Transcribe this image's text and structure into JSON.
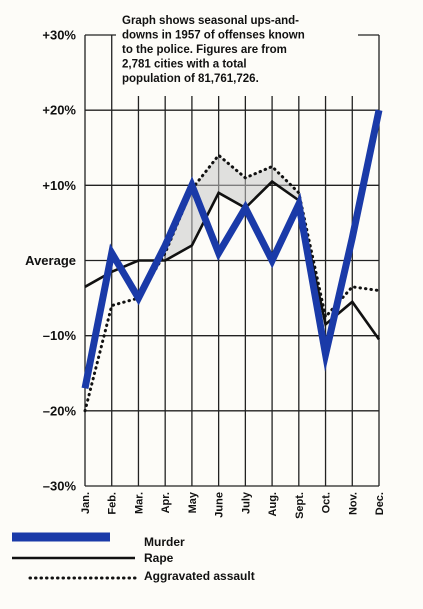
{
  "chart_data": {
    "type": "line",
    "categories": [
      "Jan.",
      "Feb.",
      "Mar.",
      "Apr.",
      "May",
      "June",
      "July",
      "Aug.",
      "Sept.",
      "Oct.",
      "Nov.",
      "Dec."
    ],
    "yticks": [
      {
        "value": 30,
        "label": "+30%"
      },
      {
        "value": 20,
        "label": "+20%"
      },
      {
        "value": 10,
        "label": "+10%"
      },
      {
        "value": 0,
        "label": "Average"
      },
      {
        "value": -10,
        "label": "–10%"
      },
      {
        "value": -20,
        "label": "–20%"
      },
      {
        "value": -30,
        "label": "–30%"
      }
    ],
    "ylim": [
      -30,
      30
    ],
    "grid": true,
    "legend_position": "bottom-left",
    "annotation": [
      "Graph shows seasonal ups-and-",
      "downs in 1957 of offenses known",
      "to the police. Figures are from",
      "2,781 cities with a total",
      "population of 81,761,726."
    ],
    "series": [
      {
        "name": "Murder",
        "color": "#1a3aa8",
        "style": "thick",
        "values": [
          -17,
          1,
          -5,
          2,
          10,
          1,
          7,
          0,
          7.5,
          -12.5,
          3,
          20
        ]
      },
      {
        "name": "Rape",
        "color": "#111111",
        "style": "solid",
        "values": [
          -3.5,
          -1.5,
          0,
          0,
          2,
          9,
          7,
          10.5,
          8,
          -8.5,
          -5.5,
          -10.5
        ]
      },
      {
        "name": "Aggravated assault",
        "color": "#111111",
        "style": "dotted",
        "values": [
          -20,
          -6,
          -5,
          1,
          9.5,
          14,
          11,
          12.5,
          9,
          -7.5,
          -3.5,
          -4
        ]
      }
    ]
  }
}
